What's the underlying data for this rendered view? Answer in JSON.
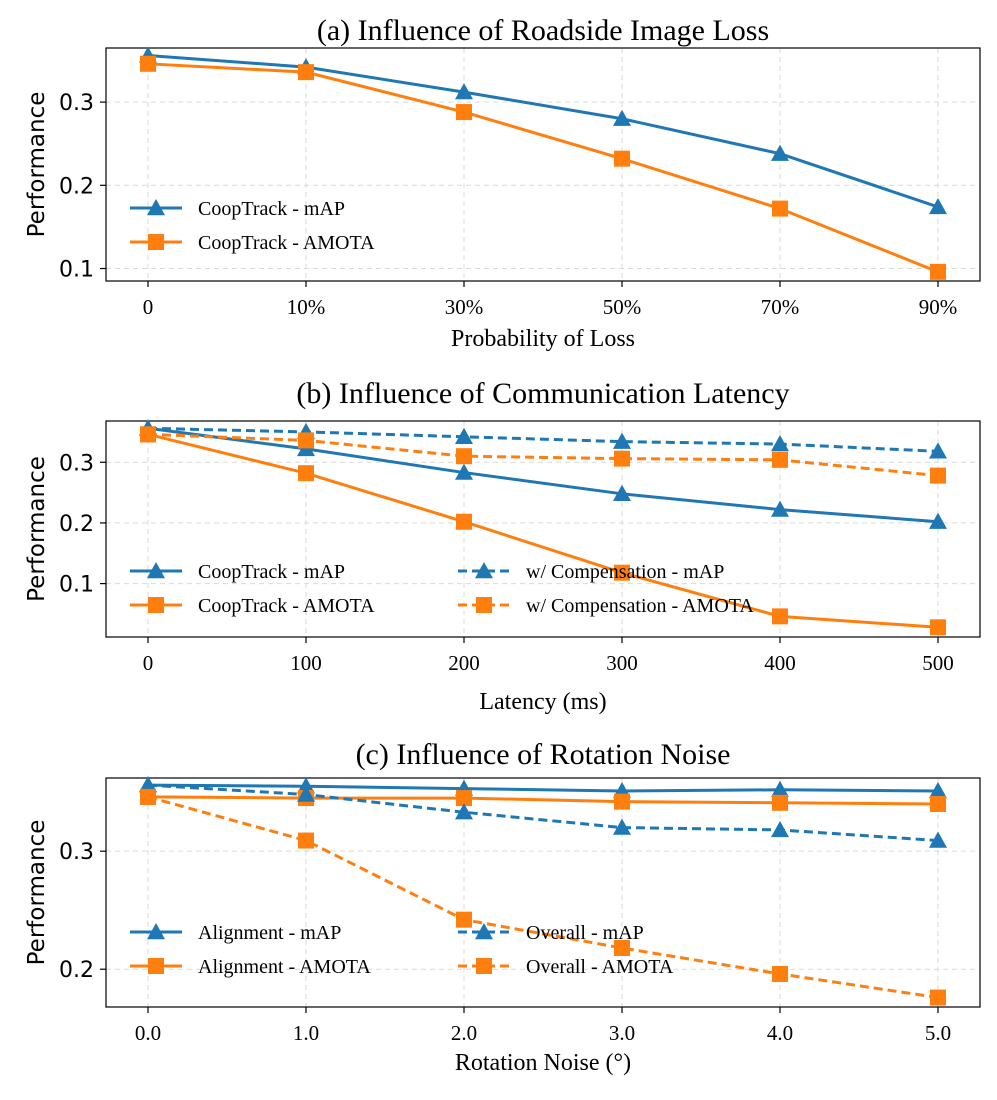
{
  "chart_data": [
    {
      "type": "line",
      "title": "(a) Influence of Roadside Image Loss",
      "xlabel": "Probability of Loss",
      "ylabel": "Performance",
      "categories": [
        "0",
        "10%",
        "30%",
        "50%",
        "70%",
        "90%"
      ],
      "yticks": [
        "0.1",
        "0.2",
        "0.3"
      ],
      "ylim": [
        0.085,
        0.365
      ],
      "legend_columns": 1,
      "series": [
        {
          "name": "CoopTrack - mAP",
          "color": "#1f77b4",
          "marker": "triangle",
          "dash": "solid",
          "values": [
            0.356,
            0.342,
            0.312,
            0.28,
            0.238,
            0.174
          ]
        },
        {
          "name": "CoopTrack - AMOTA",
          "color": "#ff7f0e",
          "marker": "square",
          "dash": "solid",
          "values": [
            0.346,
            0.336,
            0.288,
            0.232,
            0.172,
            0.096
          ]
        }
      ]
    },
    {
      "type": "line",
      "title": "(b) Influence of Communication Latency",
      "xlabel": "Latency (ms)",
      "ylabel": "Performance",
      "categories": [
        "0",
        "100",
        "200",
        "300",
        "400",
        "500"
      ],
      "yticks": [
        "0.1",
        "0.2",
        "0.3"
      ],
      "ylim": [
        0.012,
        0.368
      ],
      "legend_columns": 2,
      "series": [
        {
          "name": "CoopTrack - mAP",
          "color": "#1f77b4",
          "marker": "triangle",
          "dash": "solid",
          "values": [
            0.356,
            0.322,
            0.283,
            0.248,
            0.222,
            0.202
          ]
        },
        {
          "name": "CoopTrack - AMOTA",
          "color": "#ff7f0e",
          "marker": "square",
          "dash": "solid",
          "values": [
            0.346,
            0.282,
            0.202,
            0.118,
            0.046,
            0.028
          ]
        },
        {
          "name": "w/ Compensation - mAP",
          "color": "#1f77b4",
          "marker": "triangle",
          "dash": "dashed",
          "values": [
            0.356,
            0.35,
            0.342,
            0.334,
            0.33,
            0.318
          ]
        },
        {
          "name": "w/ Compensation - AMOTA",
          "color": "#ff7f0e",
          "marker": "square",
          "dash": "dashed",
          "values": [
            0.346,
            0.336,
            0.31,
            0.306,
            0.304,
            0.278
          ]
        }
      ]
    },
    {
      "type": "line",
      "title": "(c) Influence of Rotation Noise",
      "xlabel": "Rotation Noise (°)",
      "ylabel": "Performance",
      "categories": [
        "0.0",
        "1.0",
        "2.0",
        "3.0",
        "4.0",
        "5.0"
      ],
      "yticks": [
        "0.2",
        "0.3"
      ],
      "ylim": [
        0.168,
        0.362
      ],
      "legend_columns": 2,
      "series": [
        {
          "name": "Alignment - mAP",
          "color": "#1f77b4",
          "marker": "triangle",
          "dash": "solid",
          "values": [
            0.356,
            0.355,
            0.353,
            0.351,
            0.352,
            0.351
          ]
        },
        {
          "name": "Alignment - AMOTA",
          "color": "#ff7f0e",
          "marker": "square",
          "dash": "solid",
          "values": [
            0.346,
            0.345,
            0.345,
            0.342,
            0.341,
            0.34
          ]
        },
        {
          "name": "Overall - mAP",
          "color": "#1f77b4",
          "marker": "triangle",
          "dash": "dashed",
          "values": [
            0.356,
            0.348,
            0.333,
            0.32,
            0.318,
            0.309
          ]
        },
        {
          "name": "Overall - AMOTA",
          "color": "#ff7f0e",
          "marker": "square",
          "dash": "dashed",
          "values": [
            0.346,
            0.309,
            0.242,
            0.218,
            0.196,
            0.176
          ]
        }
      ]
    }
  ]
}
